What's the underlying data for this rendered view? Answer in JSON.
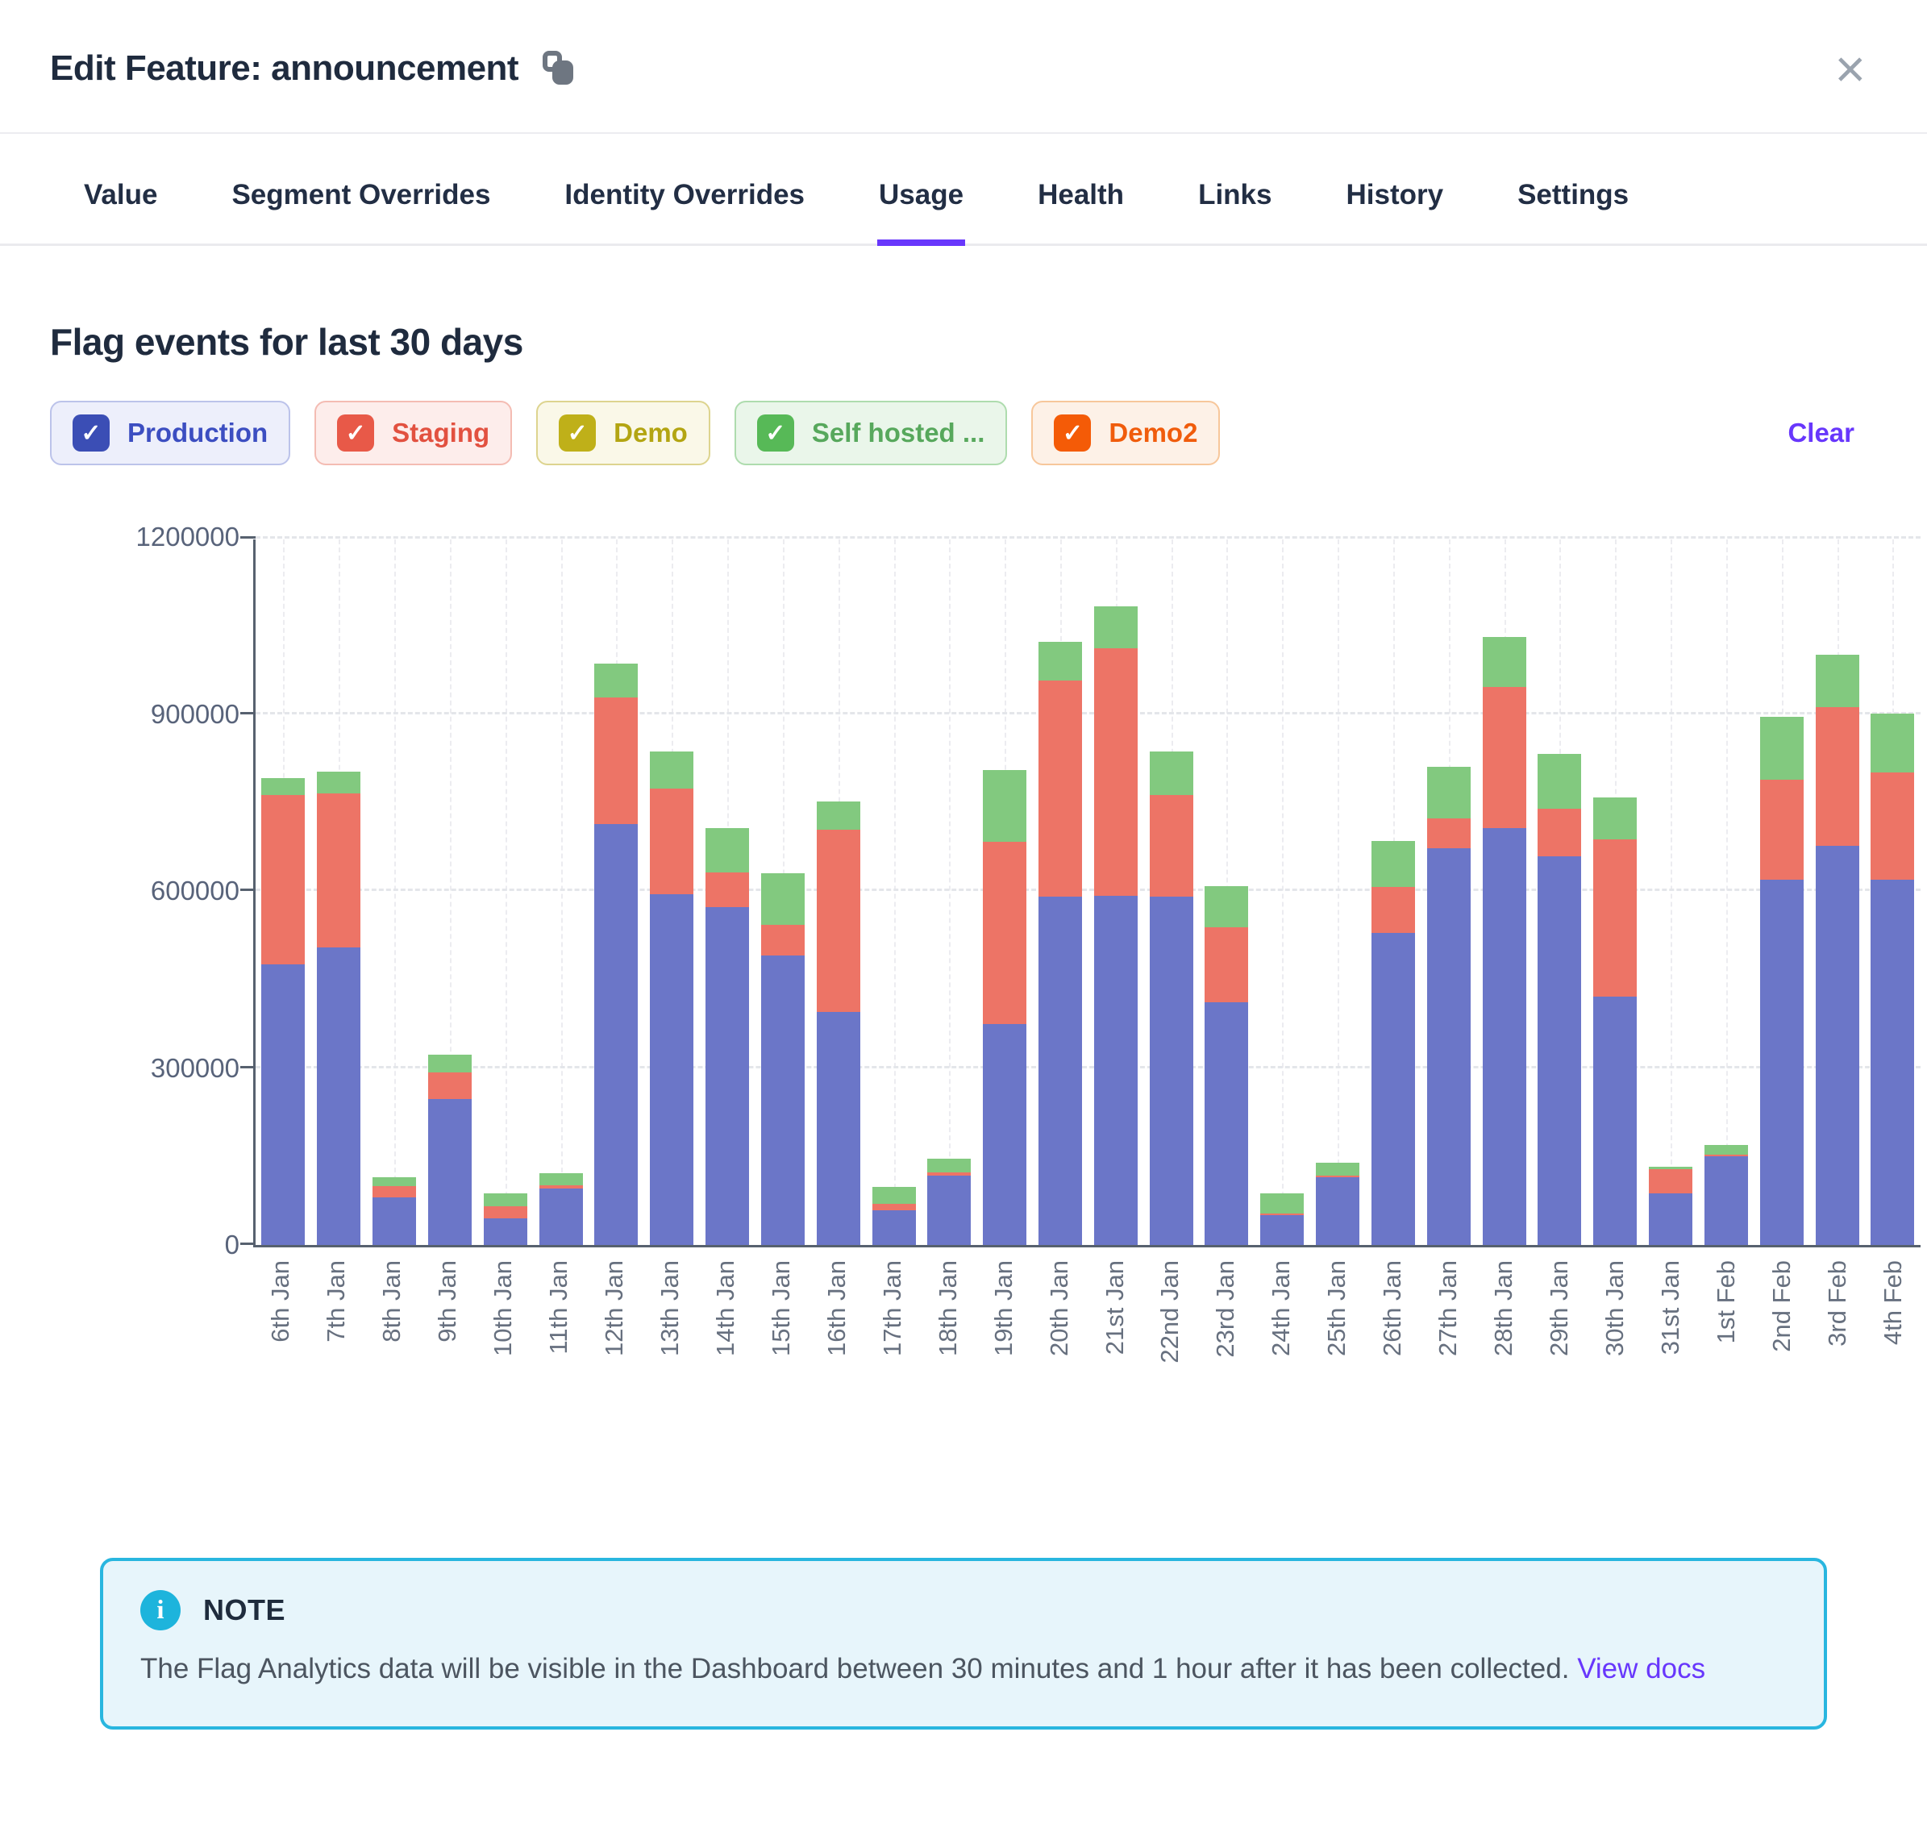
{
  "header": {
    "title": "Edit Feature: announcement",
    "close_glyph": "×"
  },
  "tabs": {
    "active": "Usage",
    "items": [
      "Value",
      "Segment Overrides",
      "Identity Overrides",
      "Usage",
      "Health",
      "Links",
      "History",
      "Settings"
    ]
  },
  "usage_panel": {
    "heading": "Flag events for last 30 days",
    "clear_label": "Clear"
  },
  "environment_filters": [
    {
      "label": "Production",
      "checked": true,
      "check_color": "#3b4eb5",
      "text_color": "#3c4ec1",
      "bg_color": "#edeffb",
      "border_color": "#bcc3ea"
    },
    {
      "label": "Staging",
      "checked": true,
      "check_color": "#e85948",
      "text_color": "#e25140",
      "bg_color": "#fdedeb",
      "border_color": "#f4bcb3"
    },
    {
      "label": "Demo",
      "checked": true,
      "check_color": "#bfb019",
      "text_color": "#b3a512",
      "bg_color": "#faf8e8",
      "border_color": "#ddd48f"
    },
    {
      "label": "Self hosted ...",
      "checked": true,
      "check_color": "#57b957",
      "text_color": "#57a85c",
      "bg_color": "#eaf6ea",
      "border_color": "#aedcae"
    },
    {
      "label": "Demo2",
      "checked": true,
      "check_color": "#f45b07",
      "text_color": "#f05c0c",
      "bg_color": "#fdf1e7",
      "border_color": "#f7c79b"
    }
  ],
  "chart_data": {
    "type": "bar",
    "stacked": true,
    "title": "Flag events for last 30 days",
    "xlabel": "",
    "ylabel": "",
    "ylim": [
      0,
      1200000
    ],
    "yticks": [
      0,
      300000,
      600000,
      900000,
      1200000
    ],
    "grid": true,
    "legend_position": "top",
    "categories": [
      "6th Jan",
      "7th Jan",
      "8th Jan",
      "9th Jan",
      "10th Jan",
      "11th Jan",
      "12th Jan",
      "13th Jan",
      "14th Jan",
      "15th Jan",
      "16th Jan",
      "17th Jan",
      "18th Jan",
      "19th Jan",
      "20th Jan",
      "21st Jan",
      "22nd Jan",
      "23rd Jan",
      "24th Jan",
      "25th Jan",
      "26th Jan",
      "27th Jan",
      "28th Jan",
      "29th Jan",
      "30th Jan",
      "31st Jan",
      "1st Feb",
      "2nd Feb",
      "3rd Feb",
      "4th Feb"
    ],
    "series": [
      {
        "name": "Production",
        "color": "#6b76c8",
        "values": [
          475000,
          505000,
          80000,
          247000,
          45000,
          96000,
          714000,
          594000,
          573000,
          490000,
          395000,
          59000,
          118000,
          374000,
          590000,
          592000,
          591000,
          412000,
          51000,
          115000,
          529000,
          672000,
          706000,
          659000,
          421000,
          87000,
          150000,
          619000,
          677000,
          619000
        ]
      },
      {
        "name": "Staging",
        "color": "#ed7466",
        "values": [
          288000,
          260000,
          20000,
          45000,
          20000,
          5000,
          214000,
          180000,
          59000,
          53000,
          309000,
          11000,
          5000,
          309000,
          367000,
          420000,
          172000,
          127000,
          3000,
          3000,
          78000,
          51000,
          240000,
          81000,
          266000,
          41000,
          3000,
          169000,
          234000,
          182000
        ]
      },
      {
        "name": "Self hosted ...",
        "color": "#82c97f",
        "values": [
          28000,
          38000,
          15000,
          30000,
          23000,
          20000,
          57000,
          63000,
          74000,
          87000,
          48000,
          28000,
          23000,
          122000,
          66000,
          70000,
          74000,
          69000,
          33000,
          22000,
          78000,
          87000,
          85000,
          92000,
          72000,
          5000,
          16000,
          107000,
          89000,
          100000
        ]
      }
    ]
  },
  "note": {
    "title": "NOTE",
    "info_glyph": "i",
    "body": "The Flag Analytics data will be visible in the Dashboard between 30 minutes and 1 hour after it has been collected.",
    "link_label": "View docs"
  },
  "accent_colors": {
    "primary": "#6837fc",
    "note_border": "#29b6df",
    "note_bg": "#e7f5fb"
  }
}
